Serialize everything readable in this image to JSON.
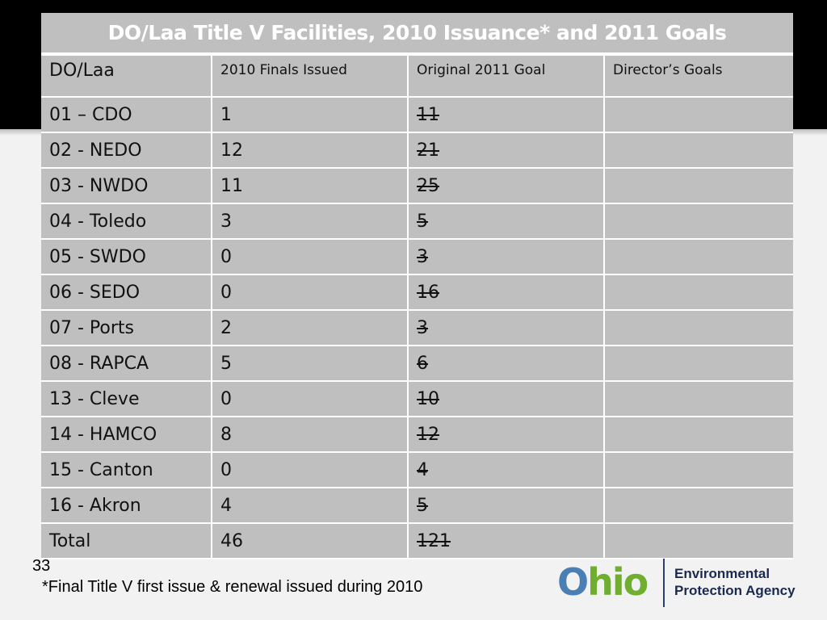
{
  "slide": {
    "title": "DO/Laa Title V Facilities, 2010 Issuance* and 2011 Goals",
    "columns": [
      "DO/Laa",
      "2010 Finals Issued",
      "Original 2011 Goal",
      "Director’s Goals"
    ],
    "rows": [
      {
        "office": "01 – CDO",
        "issued": "1",
        "goal": "11",
        "director": ""
      },
      {
        "office": "02 - NEDO",
        "issued": "12",
        "goal": "21",
        "director": ""
      },
      {
        "office": "03 - NWDO",
        "issued": "11",
        "goal": "25",
        "director": ""
      },
      {
        "office": "04 - Toledo",
        "issued": "3",
        "goal": "5",
        "director": ""
      },
      {
        "office": "05 - SWDO",
        "issued": "0",
        "goal": "3",
        "director": ""
      },
      {
        "office": "06 - SEDO",
        "issued": "0",
        "goal": "16",
        "director": ""
      },
      {
        "office": "07 - Ports",
        "issued": "2",
        "goal": "3",
        "director": ""
      },
      {
        "office": "08 - RAPCA",
        "issued": "5",
        "goal": "6",
        "director": ""
      },
      {
        "office": "13 - Cleve",
        "issued": "0",
        "goal": "10",
        "director": ""
      },
      {
        "office": "14 - HAMCO",
        "issued": "8",
        "goal": "12",
        "director": ""
      },
      {
        "office": "15 - Canton",
        "issued": "0",
        "goal": "4",
        "director": ""
      },
      {
        "office": "16 - Akron",
        "issued": "4",
        "goal": "5",
        "director": ""
      },
      {
        "office": "Total",
        "issued": "46",
        "goal": "121",
        "director": ""
      }
    ],
    "page_number": "33",
    "footnote": "*Final Title V first issue & renewal issued during 2010"
  },
  "logo": {
    "wordmark_o": "O",
    "wordmark_rest": "hio",
    "agency_line1": "Environmental",
    "agency_line2": "Protection Agency"
  },
  "colors": {
    "table_fill": "#bfbfbf",
    "logo_blue": "#4a7fb5",
    "logo_green": "#6fae2f",
    "agency_navy": "#1a2a4e"
  }
}
